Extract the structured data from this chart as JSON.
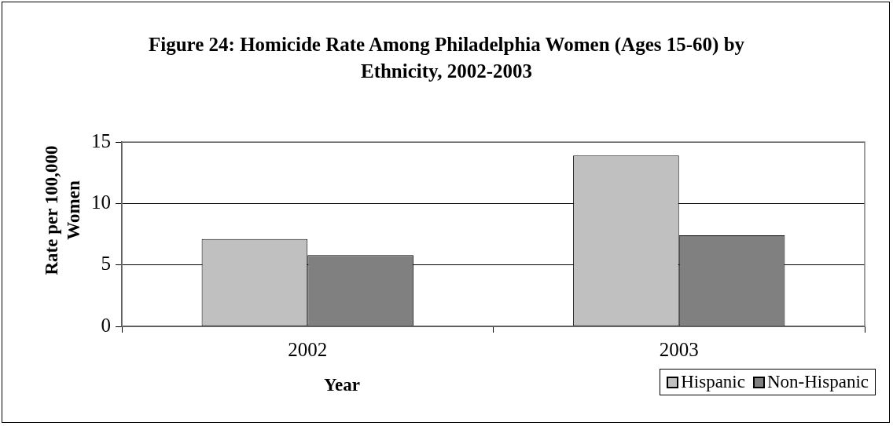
{
  "chart_data": {
    "type": "bar",
    "title": "Figure 24: Homicide Rate Among Philadelphia Women (Ages 15-60) by Ethnicity, 2002-2003",
    "xlabel": "Year",
    "ylabel": "Rate per 100,000 Women",
    "categories": [
      "2002",
      "2003"
    ],
    "series": [
      {
        "name": "Hispanic",
        "color": "#c0c0c0",
        "values": [
          7.1,
          13.9
        ]
      },
      {
        "name": "Non-Hispanic",
        "color": "#808080",
        "values": [
          5.8,
          7.4
        ]
      }
    ],
    "ylim": [
      0,
      15
    ],
    "yticks": [
      0,
      5,
      10,
      15
    ],
    "grid": "y",
    "legend": "bottom right"
  }
}
